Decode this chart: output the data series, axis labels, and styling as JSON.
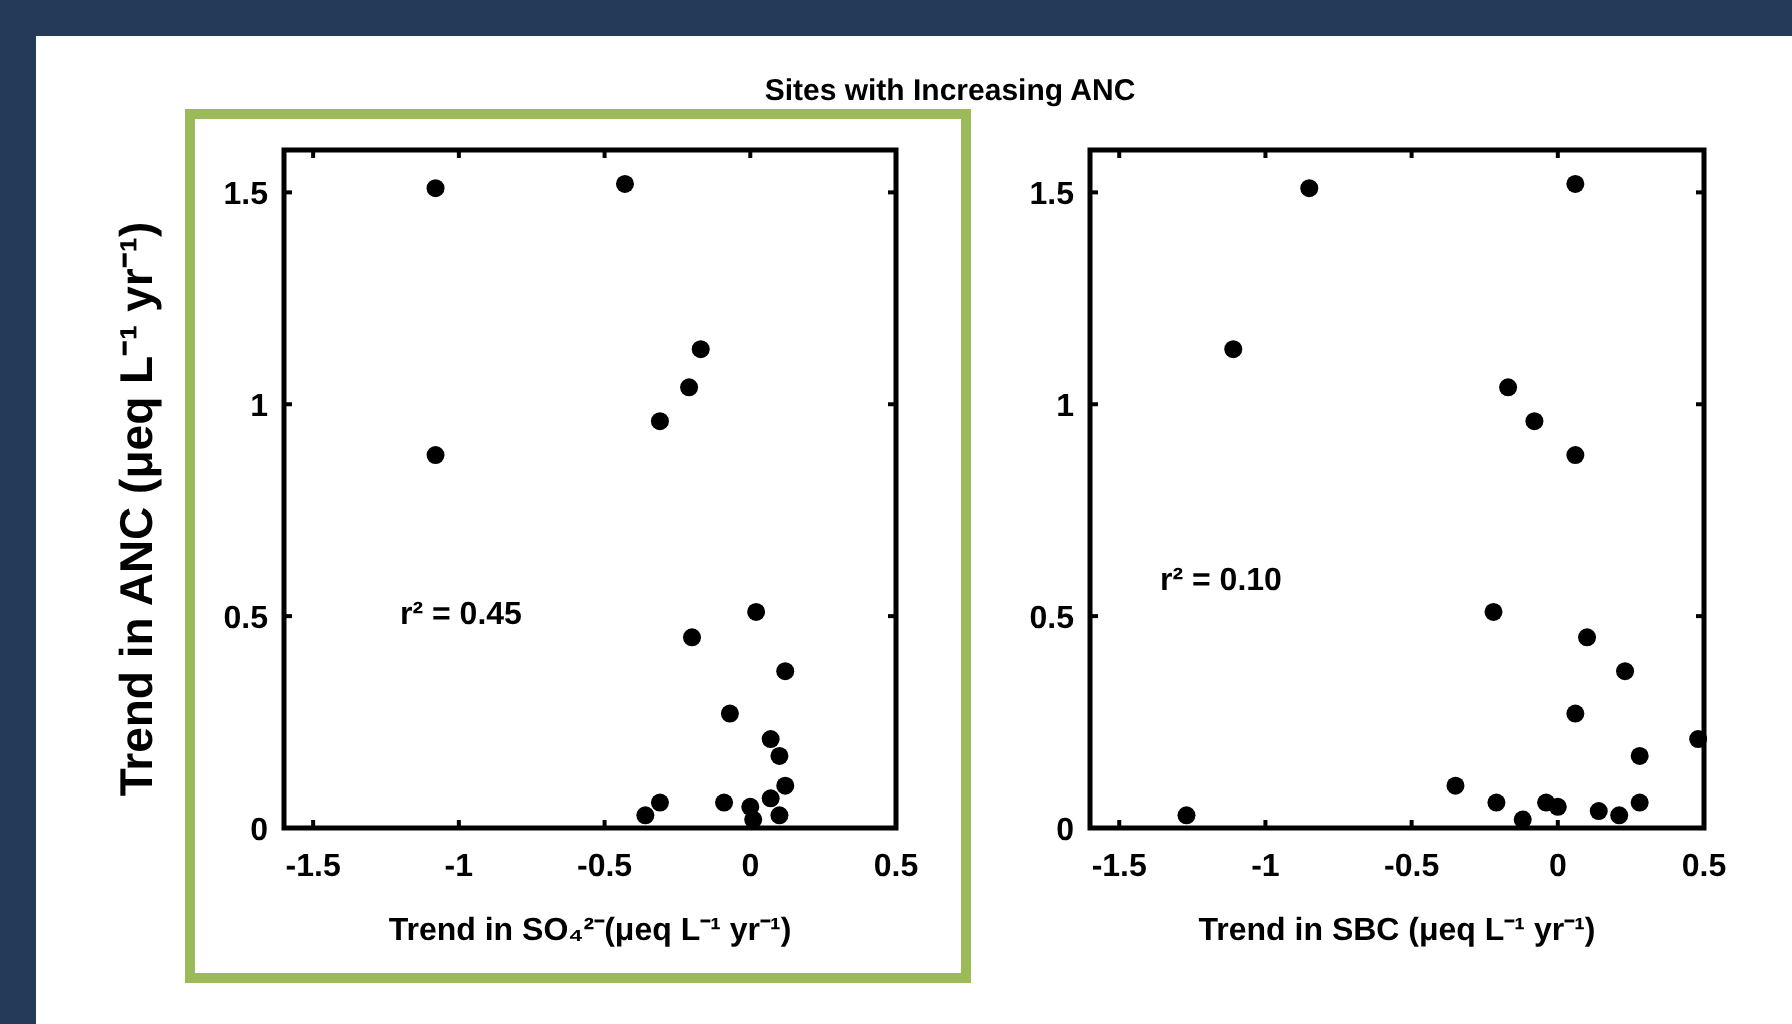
{
  "chart_data": [
    {
      "type": "scatter",
      "title": "Sites with Increasing ANC",
      "xlabel": "Trend in SO₄²⁻(μeq L⁻¹ yr⁻¹)",
      "ylabel": "Trend in ANC (μeq L⁻¹ yr⁻¹)",
      "xlim": [
        -1.6,
        0.5
      ],
      "ylim": [
        0,
        1.6
      ],
      "xticks": [
        -1.5,
        -1,
        -0.5,
        0,
        0.5
      ],
      "yticks": [
        0,
        0.5,
        1,
        1.5
      ],
      "marker": "circle",
      "annotations": [
        "r² = 0.45"
      ],
      "series": [
        {
          "color": "#000000",
          "x": [
            -1.08,
            -0.43,
            -0.17,
            -0.21,
            -0.31,
            -1.08,
            0.02,
            -0.2,
            0.12,
            -0.07,
            0.07,
            0.1,
            0.12,
            -0.31,
            -0.36,
            -0.09,
            0.0,
            0.01,
            0.07,
            0.1
          ],
          "values": [
            1.51,
            1.52,
            1.13,
            1.04,
            0.96,
            0.88,
            0.51,
            0.45,
            0.37,
            0.27,
            0.21,
            0.17,
            0.1,
            0.06,
            0.03,
            0.06,
            0.05,
            0.02,
            0.07,
            0.03
          ]
        }
      ]
    },
    {
      "type": "scatter",
      "xlabel": "Trend in SBC (μeq L⁻¹ yr⁻¹)",
      "xlim": [
        -1.6,
        0.5
      ],
      "ylim": [
        0,
        1.6
      ],
      "xticks": [
        -1.5,
        -1,
        -0.5,
        0,
        0.5
      ],
      "yticks": [
        0,
        0.5,
        1,
        1.5
      ],
      "marker": "circle",
      "annotations": [
        "r² = 0.10"
      ],
      "series": [
        {
          "color": "#000000",
          "x": [
            -0.85,
            0.06,
            -1.11,
            -0.17,
            -0.08,
            0.06,
            -0.22,
            0.1,
            0.23,
            0.06,
            0.48,
            0.28,
            -0.35,
            -0.21,
            -0.04,
            0.0,
            -0.12,
            0.14,
            0.21,
            0.28,
            -1.27
          ],
          "values": [
            1.51,
            1.52,
            1.13,
            1.04,
            0.96,
            0.88,
            0.51,
            0.45,
            0.37,
            0.27,
            0.21,
            0.17,
            0.1,
            0.06,
            0.06,
            0.05,
            0.02,
            0.04,
            0.03,
            0.06,
            0.03
          ]
        }
      ]
    }
  ]
}
